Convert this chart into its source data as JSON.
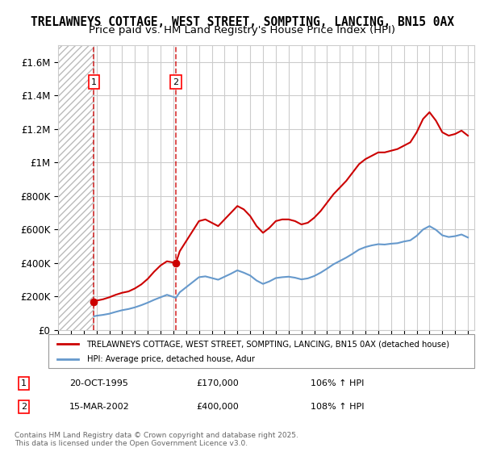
{
  "title": "TRELAWNEYS COTTAGE, WEST STREET, SOMPTING, LANCING, BN15 0AX",
  "subtitle": "Price paid vs. HM Land Registry's House Price Index (HPI)",
  "title_fontsize": 10.5,
  "subtitle_fontsize": 9.5,
  "ylabel": "",
  "xlabel": "",
  "ylim": [
    0,
    1700000
  ],
  "yticks": [
    0,
    200000,
    400000,
    600000,
    800000,
    1000000,
    1200000,
    1400000,
    1600000
  ],
  "ytick_labels": [
    "£0",
    "£200K",
    "£400K",
    "£600K",
    "£800K",
    "£1M",
    "£1.2M",
    "£1.4M",
    "£1.6M"
  ],
  "xlim_start": 1993.0,
  "xlim_end": 2025.5,
  "xtick_years": [
    1993,
    1994,
    1995,
    1996,
    1997,
    1998,
    1999,
    2000,
    2001,
    2002,
    2003,
    2004,
    2005,
    2006,
    2007,
    2008,
    2009,
    2010,
    2011,
    2012,
    2013,
    2014,
    2015,
    2016,
    2017,
    2018,
    2019,
    2020,
    2021,
    2022,
    2023,
    2024,
    2025
  ],
  "hatch_end_year": 1995.8,
  "sale1_year": 1995.8,
  "sale1_price": 170000,
  "sale1_label": "1",
  "sale1_date": "20-OCT-1995",
  "sale1_amount": "£170,000",
  "sale1_hpi": "106% ↑ HPI",
  "sale2_year": 2002.2,
  "sale2_price": 400000,
  "sale2_label": "2",
  "sale2_date": "15-MAR-2002",
  "sale2_amount": "£400,000",
  "sale2_hpi": "108% ↑ HPI",
  "red_line_color": "#cc0000",
  "blue_line_color": "#6699cc",
  "hatch_color": "#bbbbbb",
  "background_color": "#ffffff",
  "grid_color": "#cccccc",
  "legend_label_red": "TRELAWNEYS COTTAGE, WEST STREET, SOMPTING, LANCING, BN15 0AX (detached house)",
  "legend_label_blue": "HPI: Average price, detached house, Adur",
  "footnote": "Contains HM Land Registry data © Crown copyright and database right 2025.\nThis data is licensed under the Open Government Licence v3.0.",
  "red_hpi_line": {
    "years": [
      1995.83,
      1996.0,
      1996.5,
      1997.0,
      1997.5,
      1998.0,
      1998.5,
      1999.0,
      1999.5,
      2000.0,
      2000.5,
      2001.0,
      2001.5,
      2002.2,
      2002.5,
      2003.0,
      2003.5,
      2004.0,
      2004.5,
      2005.0,
      2005.5,
      2006.0,
      2006.5,
      2007.0,
      2007.5,
      2008.0,
      2008.5,
      2009.0,
      2009.5,
      2010.0,
      2010.5,
      2011.0,
      2011.5,
      2012.0,
      2012.5,
      2013.0,
      2013.5,
      2014.0,
      2014.5,
      2015.0,
      2015.5,
      2016.0,
      2016.5,
      2017.0,
      2017.5,
      2018.0,
      2018.5,
      2019.0,
      2019.5,
      2020.0,
      2020.5,
      2021.0,
      2021.5,
      2022.0,
      2022.5,
      2023.0,
      2023.5,
      2024.0,
      2024.5,
      2025.0
    ],
    "values": [
      170000,
      175000,
      183000,
      195000,
      210000,
      222000,
      230000,
      248000,
      272000,
      305000,
      348000,
      385000,
      410000,
      400000,
      470000,
      530000,
      590000,
      650000,
      660000,
      640000,
      620000,
      660000,
      700000,
      740000,
      720000,
      680000,
      620000,
      580000,
      610000,
      650000,
      660000,
      660000,
      650000,
      630000,
      640000,
      670000,
      710000,
      760000,
      810000,
      850000,
      890000,
      940000,
      990000,
      1020000,
      1040000,
      1060000,
      1060000,
      1070000,
      1080000,
      1100000,
      1120000,
      1180000,
      1260000,
      1300000,
      1250000,
      1180000,
      1160000,
      1170000,
      1190000,
      1160000
    ]
  },
  "blue_hpi_line": {
    "years": [
      1995.83,
      1996.0,
      1996.5,
      1997.0,
      1997.5,
      1998.0,
      1998.5,
      1999.0,
      1999.5,
      2000.0,
      2000.5,
      2001.0,
      2001.5,
      2002.2,
      2002.5,
      2003.0,
      2003.5,
      2004.0,
      2004.5,
      2005.0,
      2005.5,
      2006.0,
      2006.5,
      2007.0,
      2007.5,
      2008.0,
      2008.5,
      2009.0,
      2009.5,
      2010.0,
      2010.5,
      2011.0,
      2011.5,
      2012.0,
      2012.5,
      2013.0,
      2013.5,
      2014.0,
      2014.5,
      2015.0,
      2015.5,
      2016.0,
      2016.5,
      2017.0,
      2017.5,
      2018.0,
      2018.5,
      2019.0,
      2019.5,
      2020.0,
      2020.5,
      2021.0,
      2021.5,
      2022.0,
      2022.5,
      2023.0,
      2023.5,
      2024.0,
      2024.5,
      2025.0
    ],
    "values": [
      82000,
      85000,
      90000,
      97000,
      108000,
      118000,
      125000,
      135000,
      148000,
      163000,
      180000,
      195000,
      210000,
      192000,
      225000,
      255000,
      285000,
      315000,
      320000,
      310000,
      300000,
      318000,
      336000,
      356000,
      342000,
      325000,
      295000,
      275000,
      290000,
      310000,
      315000,
      318000,
      312000,
      302000,
      308000,
      322000,
      342000,
      366000,
      392000,
      412000,
      432000,
      455000,
      480000,
      495000,
      505000,
      512000,
      510000,
      515000,
      518000,
      528000,
      535000,
      562000,
      600000,
      620000,
      598000,
      565000,
      555000,
      560000,
      570000,
      552000
    ]
  }
}
